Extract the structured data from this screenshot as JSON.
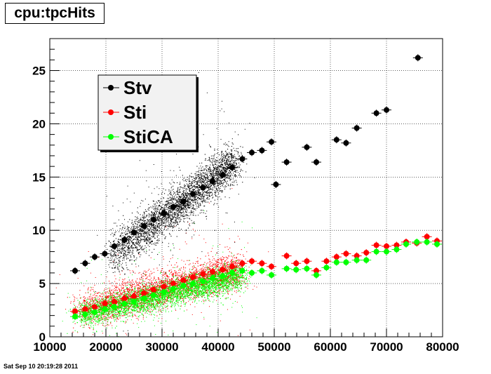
{
  "header": {
    "title": "cpu:tpcHits"
  },
  "footer": {
    "timestamp": "Sat Sep 10 20:19:28 2011"
  },
  "colors": {
    "Stv": "#000000",
    "Sti": "#ff0000",
    "StiCA": "#00ff00"
  },
  "chart_data": {
    "type": "scatter",
    "title": "cpu:tpcHits",
    "xlabel": "",
    "ylabel": "",
    "xlim": [
      10000,
      80000
    ],
    "ylim": [
      0,
      28
    ],
    "x_ticks": [
      10000,
      20000,
      30000,
      40000,
      50000,
      60000,
      70000,
      80000
    ],
    "y_ticks": [
      0,
      5,
      10,
      15,
      20,
      25
    ],
    "grid": true,
    "legend_position": "top-left",
    "series": [
      {
        "name": "Stv",
        "points": [
          [
            14500,
            6.2
          ],
          [
            16300,
            6.9
          ],
          [
            18000,
            7.5
          ],
          [
            19800,
            7.8
          ],
          [
            21500,
            8.5
          ],
          [
            23300,
            9.1
          ],
          [
            25000,
            9.8
          ],
          [
            26800,
            10.4
          ],
          [
            28500,
            11.0
          ],
          [
            30300,
            11.6
          ],
          [
            32000,
            12.2
          ],
          [
            33800,
            12.7
          ],
          [
            35500,
            13.4
          ],
          [
            37300,
            14.0
          ],
          [
            39000,
            14.6
          ],
          [
            40800,
            15.2
          ],
          [
            42500,
            15.9
          ],
          [
            44300,
            16.7
          ],
          [
            46000,
            17.3
          ],
          [
            47800,
            17.5
          ],
          [
            49500,
            18.3
          ],
          [
            50300,
            14.3
          ],
          [
            52200,
            16.4
          ],
          [
            55800,
            17.8
          ],
          [
            57500,
            16.4
          ],
          [
            61100,
            18.5
          ],
          [
            62800,
            18.2
          ],
          [
            64700,
            19.6
          ],
          [
            68200,
            21.0
          ],
          [
            70000,
            21.3
          ],
          [
            75600,
            26.2
          ]
        ]
      },
      {
        "name": "Sti",
        "points": [
          [
            14500,
            2.4
          ],
          [
            16300,
            2.6
          ],
          [
            18000,
            2.8
          ],
          [
            19800,
            3.1
          ],
          [
            21500,
            3.3
          ],
          [
            23300,
            3.6
          ],
          [
            25000,
            3.8
          ],
          [
            26800,
            4.1
          ],
          [
            28500,
            4.4
          ],
          [
            30300,
            4.7
          ],
          [
            32000,
            5.0
          ],
          [
            33800,
            5.3
          ],
          [
            35500,
            5.6
          ],
          [
            37300,
            5.9
          ],
          [
            39000,
            6.1
          ],
          [
            40800,
            6.3
          ],
          [
            42500,
            6.6
          ],
          [
            44300,
            6.9
          ],
          [
            46000,
            7.1
          ],
          [
            47800,
            6.9
          ],
          [
            49500,
            6.6
          ],
          [
            52200,
            7.6
          ],
          [
            53900,
            6.9
          ],
          [
            55800,
            7.1
          ],
          [
            57500,
            6.2
          ],
          [
            59300,
            7.1
          ],
          [
            61100,
            7.5
          ],
          [
            62800,
            7.8
          ],
          [
            64700,
            7.6
          ],
          [
            66400,
            7.9
          ],
          [
            68200,
            8.6
          ],
          [
            70000,
            8.5
          ],
          [
            71800,
            8.6
          ],
          [
            73500,
            8.9
          ],
          [
            75400,
            8.8
          ],
          [
            77200,
            9.4
          ],
          [
            79000,
            9.0
          ]
        ]
      },
      {
        "name": "StiCA",
        "points": [
          [
            14500,
            1.9
          ],
          [
            16300,
            2.1
          ],
          [
            18000,
            2.3
          ],
          [
            19800,
            2.6
          ],
          [
            21500,
            2.8
          ],
          [
            23300,
            3.1
          ],
          [
            25000,
            3.3
          ],
          [
            26800,
            3.6
          ],
          [
            28500,
            3.9
          ],
          [
            30300,
            4.2
          ],
          [
            32000,
            4.5
          ],
          [
            33800,
            4.8
          ],
          [
            35500,
            5.0
          ],
          [
            37300,
            5.2
          ],
          [
            39000,
            5.5
          ],
          [
            40800,
            5.7
          ],
          [
            42500,
            6.0
          ],
          [
            44300,
            6.2
          ],
          [
            46000,
            6.0
          ],
          [
            47800,
            6.2
          ],
          [
            49500,
            5.8
          ],
          [
            52200,
            6.4
          ],
          [
            53900,
            6.3
          ],
          [
            55800,
            6.4
          ],
          [
            57500,
            5.8
          ],
          [
            59300,
            6.5
          ],
          [
            61100,
            7.0
          ],
          [
            62800,
            7.0
          ],
          [
            64700,
            7.2
          ],
          [
            66400,
            7.2
          ],
          [
            68200,
            8.0
          ],
          [
            70000,
            8.0
          ],
          [
            71800,
            8.2
          ],
          [
            73500,
            8.7
          ],
          [
            75400,
            8.9
          ],
          [
            77200,
            8.9
          ],
          [
            79000,
            8.7
          ]
        ]
      }
    ],
    "density_clouds": [
      {
        "series": "Stv",
        "x_start": 21000,
        "y_start": 7.6,
        "x_end": 43000,
        "y_end": 16.5,
        "spread": 0.9
      },
      {
        "series": "Sti",
        "x_start": 15000,
        "y_start": 2.4,
        "x_end": 44000,
        "y_end": 6.4,
        "spread": 0.8
      },
      {
        "series": "StiCA",
        "x_start": 15000,
        "y_start": 2.0,
        "x_end": 44000,
        "y_end": 5.7,
        "spread": 0.6
      }
    ]
  }
}
